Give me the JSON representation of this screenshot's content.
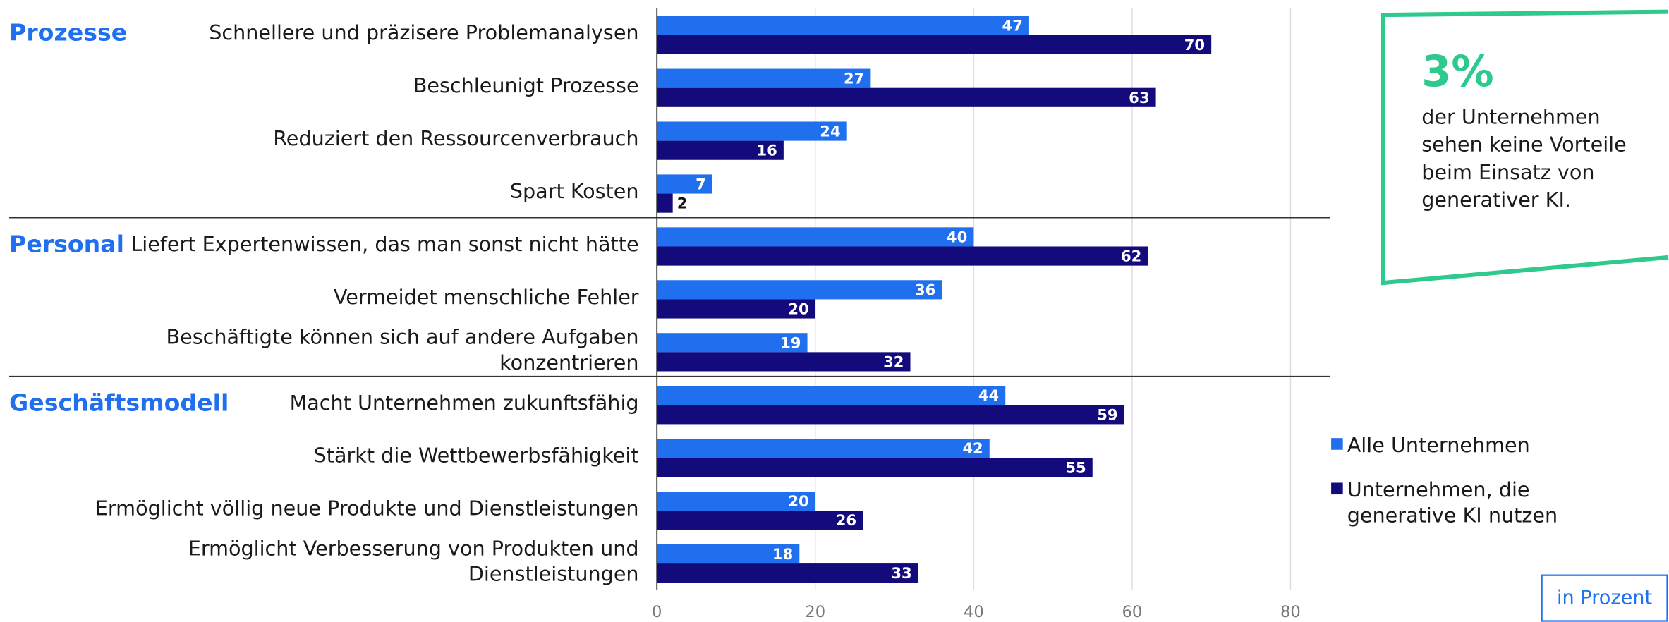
{
  "chart_data": {
    "type": "bar",
    "orientation": "horizontal",
    "groups": [
      {
        "label": "Prozesse",
        "categories": [
          "Schnellere und präzisere Problemanalysen",
          "Beschleunigt Prozesse",
          "Reduziert den Ressourcenverbrauch",
          "Spart Kosten"
        ]
      },
      {
        "label": "Personal",
        "categories": [
          "Liefert Expertenwissen, das man sonst nicht hätte",
          "Vermeidet menschliche Fehler",
          [
            "Beschäftigte können sich auf andere Aufgaben",
            "konzentrieren"
          ]
        ]
      },
      {
        "label": "Geschäftsmodell",
        "categories": [
          "Macht Unternehmen zukunftsfähig",
          "Stärkt die Wettbewerbsfähigkeit",
          "Ermöglicht völlig neue Produkte und Dienstleistungen",
          [
            "Ermöglicht Verbesserung von Produkten und",
            "Dienstleistungen"
          ]
        ]
      }
    ],
    "series": [
      {
        "name": "Alle Unternehmen",
        "color": "#1f6fef",
        "values": [
          47,
          27,
          24,
          7,
          40,
          36,
          19,
          44,
          42,
          20,
          18
        ]
      },
      {
        "name": "Unternehmen, die generative KI nutzen",
        "color": "#130a7c",
        "values": [
          70,
          63,
          16,
          2,
          62,
          20,
          32,
          59,
          55,
          26,
          33
        ]
      }
    ],
    "xlim": [
      0,
      85
    ],
    "xticks": [
      0,
      20,
      40,
      60,
      80
    ],
    "grid": true,
    "callout": {
      "headline": "3%",
      "lines": [
        "der Unternehmen",
        "sehen keine Vorteile",
        "beim Einsatz von",
        "generativer  KI."
      ]
    },
    "unit_note": "in Prozent"
  }
}
